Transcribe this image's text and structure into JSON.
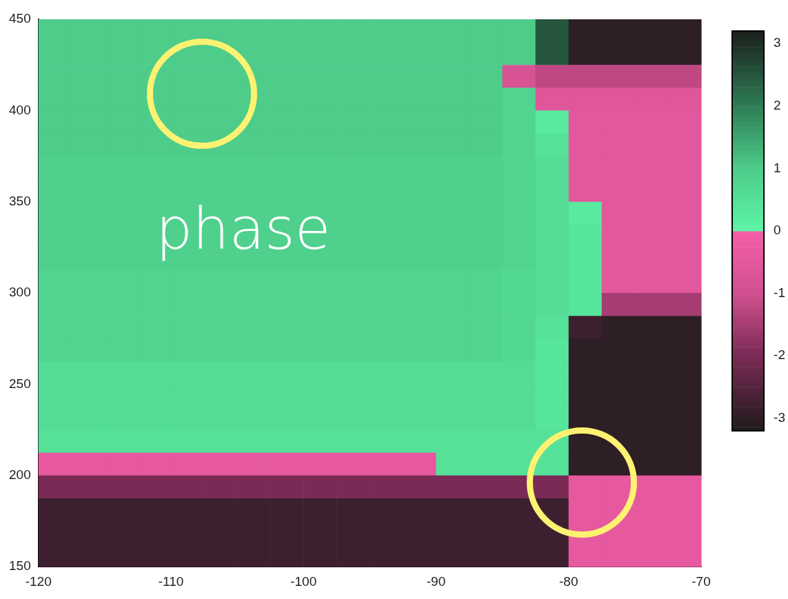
{
  "chart_data": {
    "type": "heatmap",
    "annotations": [
      "phase"
    ],
    "x": [
      -118.75,
      -116.25,
      -113.75,
      -111.25,
      -108.75,
      -106.25,
      -103.75,
      -101.25,
      -98.75,
      -96.25,
      -93.75,
      -91.25,
      -88.75,
      -86.25,
      -83.75,
      -81.25,
      -78.75,
      -76.25,
      -73.75,
      -71.25
    ],
    "y": [
      443.75,
      431.25,
      418.75,
      406.25,
      393.75,
      381.25,
      368.75,
      356.25,
      343.75,
      331.25,
      318.75,
      306.25,
      293.75,
      281.25,
      268.75,
      256.25,
      243.75,
      231.25,
      218.75,
      206.25,
      193.75,
      181.25,
      168.75,
      156.25
    ],
    "cells": [
      [
        1.0,
        1.0,
        1.0,
        1.0,
        1.0,
        1.0,
        1.0,
        1.0,
        1.0,
        1.0,
        1.0,
        1.0,
        1.0,
        1.0,
        1.0,
        2.5,
        -3.0,
        -3.0,
        -3.0,
        -3.0
      ],
      [
        1.0,
        1.0,
        1.0,
        1.0,
        1.0,
        1.0,
        1.0,
        1.0,
        1.0,
        1.0,
        1.0,
        1.0,
        1.0,
        1.0,
        1.0,
        2.5,
        -3.0,
        -3.0,
        -3.0,
        -3.0
      ],
      [
        1.0,
        1.0,
        1.0,
        1.0,
        1.0,
        1.0,
        1.0,
        1.0,
        1.0,
        1.0,
        1.0,
        1.0,
        1.0,
        1.0,
        -0.8,
        -1.2,
        -1.2,
        -1.2,
        -1.2,
        -1.2
      ],
      [
        1.0,
        1.0,
        1.0,
        1.0,
        1.0,
        1.0,
        1.0,
        1.0,
        1.0,
        1.0,
        1.0,
        1.0,
        1.0,
        1.0,
        0.8,
        -0.6,
        -0.6,
        -0.6,
        -0.6,
        -0.6
      ],
      [
        1.0,
        1.0,
        1.0,
        1.0,
        1.0,
        1.0,
        1.0,
        1.0,
        1.0,
        1.0,
        1.0,
        1.0,
        1.0,
        1.0,
        0.8,
        0.3,
        -0.5,
        -0.5,
        -0.5,
        -0.5
      ],
      [
        1.0,
        1.0,
        1.0,
        1.0,
        1.0,
        1.0,
        1.0,
        1.0,
        1.0,
        1.0,
        1.0,
        1.0,
        1.0,
        1.0,
        0.8,
        0.5,
        -0.5,
        -0.5,
        -0.5,
        -0.5
      ],
      [
        0.9,
        0.9,
        0.9,
        0.9,
        0.9,
        0.9,
        0.9,
        0.9,
        0.9,
        0.9,
        0.9,
        0.9,
        0.9,
        0.9,
        0.8,
        0.6,
        -0.5,
        -0.5,
        -0.5,
        -0.5
      ],
      [
        0.9,
        0.9,
        0.9,
        0.9,
        0.9,
        0.9,
        0.9,
        0.9,
        0.9,
        0.9,
        0.9,
        0.9,
        0.9,
        0.9,
        0.8,
        0.6,
        -0.5,
        -0.5,
        -0.5,
        -0.5
      ],
      [
        0.9,
        0.9,
        0.9,
        0.9,
        0.9,
        0.9,
        0.9,
        0.9,
        0.9,
        0.9,
        0.9,
        0.9,
        0.9,
        0.9,
        0.8,
        0.6,
        0.3,
        -0.5,
        -0.5,
        -0.5
      ],
      [
        0.9,
        0.9,
        0.9,
        0.9,
        0.9,
        0.9,
        0.9,
        0.9,
        0.9,
        0.9,
        0.9,
        0.9,
        0.9,
        0.9,
        0.8,
        0.6,
        0.4,
        -0.5,
        -0.5,
        -0.5
      ],
      [
        0.9,
        0.9,
        0.9,
        0.9,
        0.9,
        0.9,
        0.9,
        0.9,
        0.9,
        0.9,
        0.9,
        0.9,
        0.9,
        0.9,
        0.8,
        0.6,
        0.4,
        -0.5,
        -0.5,
        -0.5
      ],
      [
        0.8,
        0.8,
        0.8,
        0.8,
        0.8,
        0.8,
        0.8,
        0.8,
        0.8,
        0.8,
        0.8,
        0.8,
        0.8,
        0.8,
        0.7,
        0.6,
        0.4,
        -0.5,
        -0.5,
        -0.5
      ],
      [
        0.8,
        0.8,
        0.8,
        0.8,
        0.8,
        0.8,
        0.8,
        0.8,
        0.8,
        0.8,
        0.8,
        0.8,
        0.8,
        0.8,
        0.7,
        0.6,
        0.4,
        -1.5,
        -1.5,
        -1.5
      ],
      [
        0.8,
        0.8,
        0.8,
        0.8,
        0.8,
        0.8,
        0.8,
        0.8,
        0.8,
        0.8,
        0.8,
        0.8,
        0.8,
        0.8,
        0.7,
        0.5,
        -2.8,
        -3.0,
        -3.0,
        -3.0
      ],
      [
        0.8,
        0.8,
        0.8,
        0.8,
        0.8,
        0.8,
        0.8,
        0.8,
        0.8,
        0.8,
        0.8,
        0.8,
        0.8,
        0.8,
        0.7,
        0.4,
        -3.0,
        -3.0,
        -3.0,
        -3.0
      ],
      [
        0.6,
        0.6,
        0.6,
        0.6,
        0.6,
        0.6,
        0.6,
        0.6,
        0.6,
        0.6,
        0.6,
        0.6,
        0.6,
        0.6,
        0.6,
        0.4,
        -3.0,
        -3.0,
        -3.0,
        -3.0
      ],
      [
        0.6,
        0.6,
        0.6,
        0.6,
        0.6,
        0.6,
        0.6,
        0.6,
        0.6,
        0.6,
        0.6,
        0.6,
        0.6,
        0.6,
        0.6,
        0.4,
        -3.0,
        -3.0,
        -3.0,
        -3.0
      ],
      [
        0.6,
        0.6,
        0.6,
        0.6,
        0.6,
        0.6,
        0.6,
        0.6,
        0.6,
        0.6,
        0.6,
        0.6,
        0.6,
        0.6,
        0.6,
        0.4,
        -3.0,
        -3.0,
        -3.0,
        -3.0
      ],
      [
        0.5,
        0.5,
        0.5,
        0.5,
        0.5,
        0.5,
        0.5,
        0.5,
        0.5,
        0.5,
        0.5,
        0.5,
        0.5,
        0.5,
        0.5,
        0.5,
        -3.0,
        -3.0,
        -3.0,
        -3.0
      ],
      [
        -0.4,
        -0.4,
        -0.4,
        -0.4,
        -0.4,
        -0.4,
        -0.4,
        -0.4,
        -0.4,
        -0.4,
        -0.4,
        -0.4,
        0.5,
        0.5,
        0.5,
        0.5,
        -3.0,
        -3.0,
        -3.0,
        -3.0
      ],
      [
        -2.0,
        -2.0,
        -2.0,
        -2.0,
        -2.0,
        -2.0,
        -2.0,
        -2.0,
        -2.0,
        -2.0,
        -2.0,
        -2.0,
        -2.0,
        -2.0,
        -2.0,
        -2.0,
        -0.4,
        -0.4,
        -0.4,
        -0.4
      ],
      [
        -2.8,
        -2.8,
        -2.8,
        -2.8,
        -2.8,
        -2.8,
        -2.8,
        -2.8,
        -2.8,
        -2.8,
        -2.8,
        -2.8,
        -2.8,
        -2.8,
        -2.8,
        -2.8,
        -0.4,
        -0.4,
        -0.4,
        -0.4
      ],
      [
        -2.8,
        -2.8,
        -2.8,
        -2.8,
        -2.8,
        -2.8,
        -2.8,
        -2.8,
        -2.8,
        -2.8,
        -2.8,
        -2.8,
        -2.8,
        -2.8,
        -2.8,
        -2.8,
        -0.4,
        -0.4,
        -0.4,
        -0.4
      ],
      [
        -2.8,
        -2.8,
        -2.8,
        -2.8,
        -2.8,
        -2.8,
        -2.8,
        -2.8,
        -2.8,
        -2.8,
        -2.8,
        -2.8,
        -2.8,
        -2.8,
        -2.8,
        -2.8,
        -0.4,
        -0.4,
        -0.4,
        -0.4
      ]
    ],
    "xlim": [
      -120,
      -70
    ],
    "xticks": [
      -120,
      -110,
      -100,
      -90,
      -80,
      -70
    ],
    "ylim": [
      150,
      450
    ],
    "yticks": [
      150,
      200,
      250,
      300,
      350,
      400,
      450
    ],
    "clim": [
      -3.2,
      3.2
    ],
    "cticks": [
      -3,
      -2,
      -1,
      0,
      1,
      2,
      3
    ]
  }
}
